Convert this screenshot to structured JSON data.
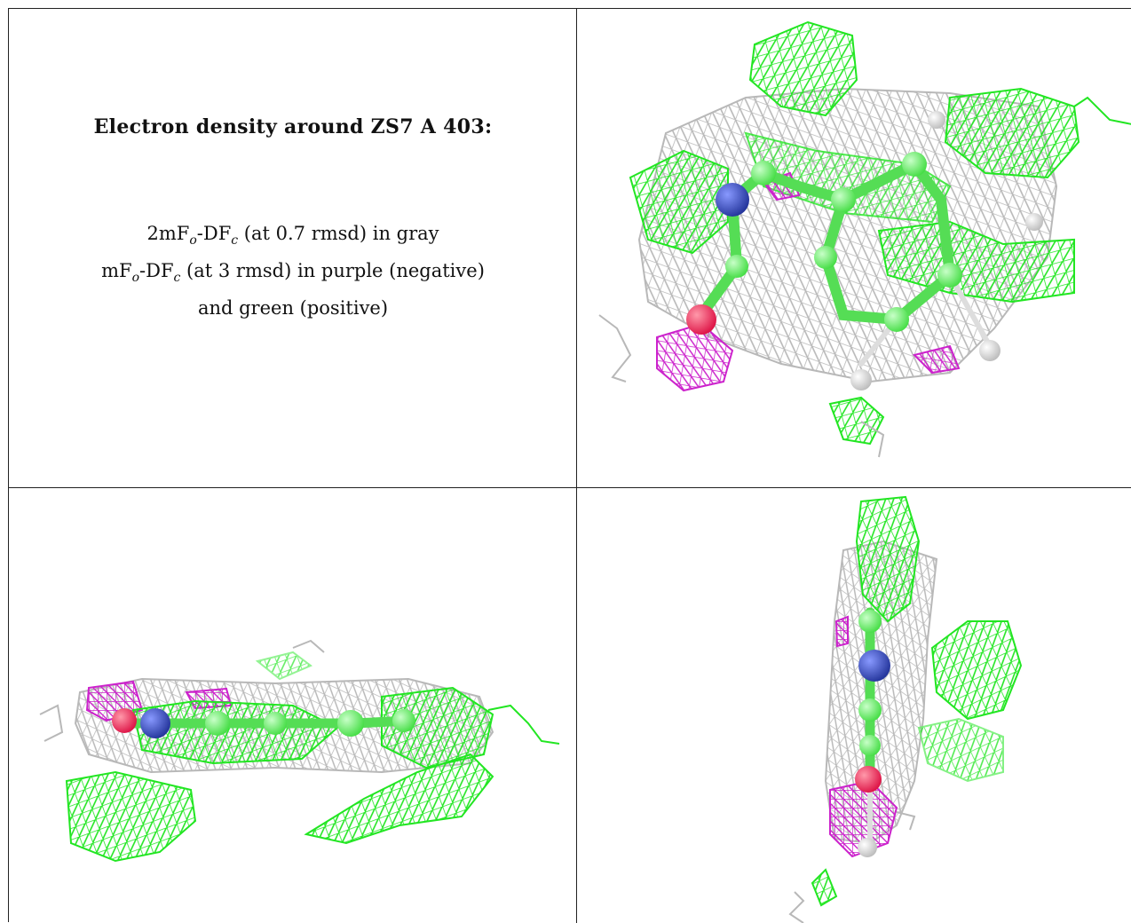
{
  "title": "Electron density around ZS7 A 403:",
  "legend": {
    "line1": {
      "pre": "2mF",
      "sub1": "o",
      "mid": "-DF",
      "sub2": "c",
      "post": " (at 0.7 rmsd) in gray"
    },
    "line2": {
      "pre": "mF",
      "sub1": "o",
      "mid": "-DF",
      "sub2": "c",
      "post": " (at 3 rmsd) in purple (negative)"
    },
    "line3": "and green (positive)"
  },
  "colors": {
    "gray_mesh": "#b8b8b8",
    "positive_mesh": "#22e622",
    "negative_mesh": "#cc22cc",
    "carbon": "#66ee66",
    "nitrogen": "#3344bb",
    "oxygen": "#ee2255",
    "hydrogen": "#e8e8e8"
  }
}
